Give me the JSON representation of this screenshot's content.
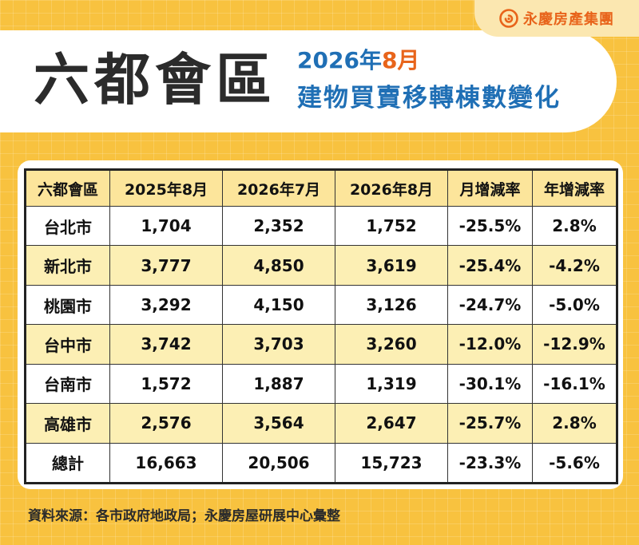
{
  "brand": {
    "name": "永慶房產集團",
    "logo_icon": "yungching-logo-icon",
    "accent": "#e8641b"
  },
  "header": {
    "title": "六都會區",
    "subtitle_date_prefix": "2026年",
    "subtitle_date_month": "8月",
    "subtitle_line2": "建物買賣移轉棟數變化"
  },
  "colors": {
    "background": "#f8c23f",
    "header_row": "#fce59b",
    "band_row": "#fcefb4",
    "title_blue": "#1f6fb5"
  },
  "chart_data": {
    "type": "table",
    "columns": [
      "六都會區",
      "2025年8月",
      "2026年7月",
      "2026年8月",
      "月增減率",
      "年增減率"
    ],
    "rows": [
      [
        "台北市",
        "1,704",
        "2,352",
        "1,752",
        "-25.5%",
        "2.8%"
      ],
      [
        "新北市",
        "3,777",
        "4,850",
        "3,619",
        "-25.4%",
        "-4.2%"
      ],
      [
        "桃園市",
        "3,292",
        "4,150",
        "3,126",
        "-24.7%",
        "-5.0%"
      ],
      [
        "台中市",
        "3,742",
        "3,703",
        "3,260",
        "-12.0%",
        "-12.9%"
      ],
      [
        "台南市",
        "1,572",
        "1,887",
        "1,319",
        "-30.1%",
        "-16.1%"
      ],
      [
        "高雄市",
        "2,576",
        "3,564",
        "2,647",
        "-25.7%",
        "2.8%"
      ],
      [
        "總計",
        "16,663",
        "20,506",
        "15,723",
        "-23.3%",
        "-5.6%"
      ]
    ]
  },
  "footer": {
    "source": "資料來源：各市政府地政局；永慶房屋研展中心彙整"
  }
}
